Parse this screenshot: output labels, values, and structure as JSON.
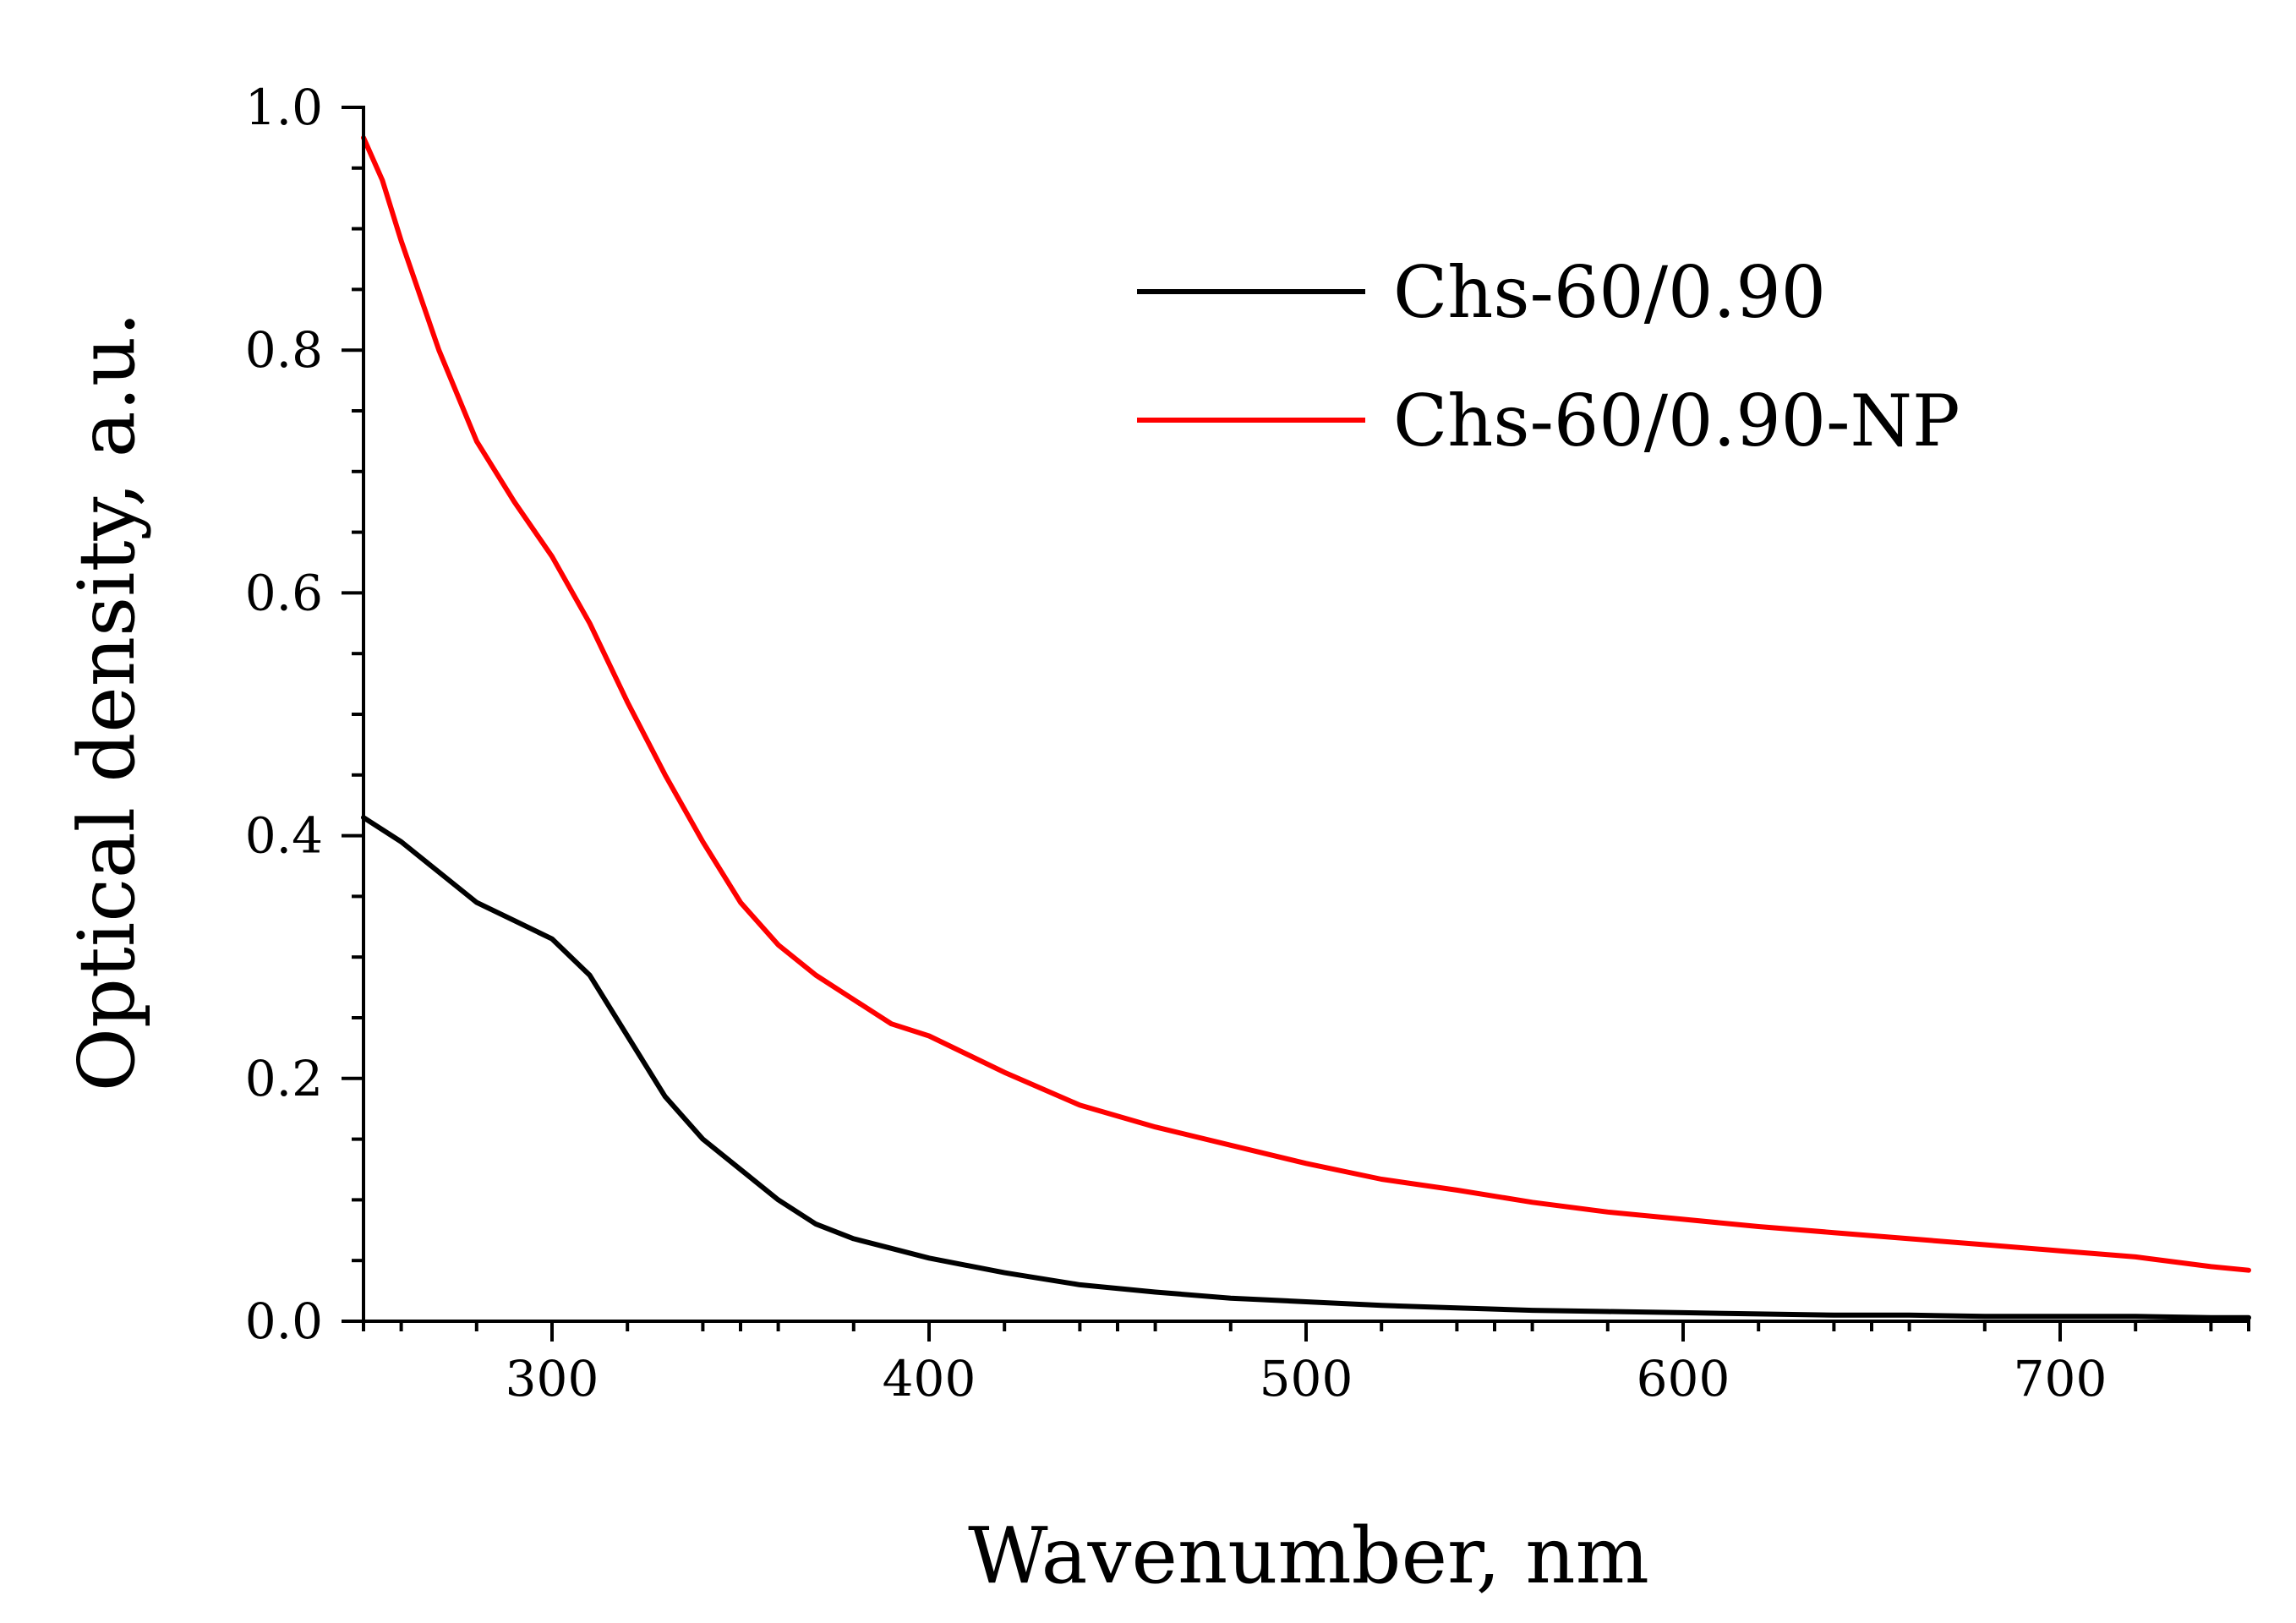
{
  "chart_data": {
    "type": "line",
    "title": "",
    "xlabel": "Wavenumber, nm",
    "ylabel": "Optical density, a.u.",
    "xlim": [
      250,
      750
    ],
    "ylim": [
      0.0,
      1.0
    ],
    "x_ticks": [
      300,
      400,
      500,
      600,
      700
    ],
    "x_tick_labels": [
      "300",
      "400",
      "500",
      "600",
      "700"
    ],
    "y_ticks": [
      0.0,
      0.2,
      0.4,
      0.6,
      0.8,
      1.0
    ],
    "y_tick_labels": [
      "0.0",
      "0.2",
      "0.4",
      "0.6",
      "0.8",
      "1.0"
    ],
    "grid": false,
    "legend_position": "top-right",
    "series": [
      {
        "name": "Chs-60/0.90",
        "color": "#000000",
        "x": [
          250,
          260,
          270,
          280,
          290,
          300,
          310,
          320,
          330,
          340,
          350,
          360,
          370,
          380,
          390,
          400,
          420,
          440,
          460,
          480,
          500,
          520,
          540,
          560,
          580,
          600,
          620,
          640,
          660,
          680,
          700,
          720,
          740,
          750
        ],
        "y": [
          0.415,
          0.395,
          0.37,
          0.345,
          0.33,
          0.315,
          0.285,
          0.235,
          0.185,
          0.15,
          0.125,
          0.1,
          0.08,
          0.068,
          0.06,
          0.052,
          0.04,
          0.03,
          0.024,
          0.019,
          0.016,
          0.013,
          0.011,
          0.009,
          0.008,
          0.007,
          0.006,
          0.005,
          0.005,
          0.004,
          0.004,
          0.004,
          0.003,
          0.003
        ]
      },
      {
        "name": "Chs-60/0.90-NP",
        "color": "#ff0000",
        "x": [
          250,
          255,
          260,
          270,
          280,
          290,
          300,
          310,
          320,
          330,
          340,
          350,
          360,
          370,
          380,
          390,
          400,
          420,
          440,
          460,
          480,
          500,
          520,
          540,
          560,
          580,
          600,
          620,
          640,
          660,
          680,
          700,
          720,
          740,
          750
        ],
        "y": [
          0.975,
          0.94,
          0.89,
          0.8,
          0.725,
          0.675,
          0.63,
          0.575,
          0.51,
          0.45,
          0.395,
          0.345,
          0.31,
          0.285,
          0.265,
          0.245,
          0.235,
          0.205,
          0.178,
          0.16,
          0.145,
          0.13,
          0.117,
          0.108,
          0.098,
          0.09,
          0.084,
          0.078,
          0.073,
          0.068,
          0.063,
          0.058,
          0.053,
          0.045,
          0.042
        ]
      }
    ]
  }
}
